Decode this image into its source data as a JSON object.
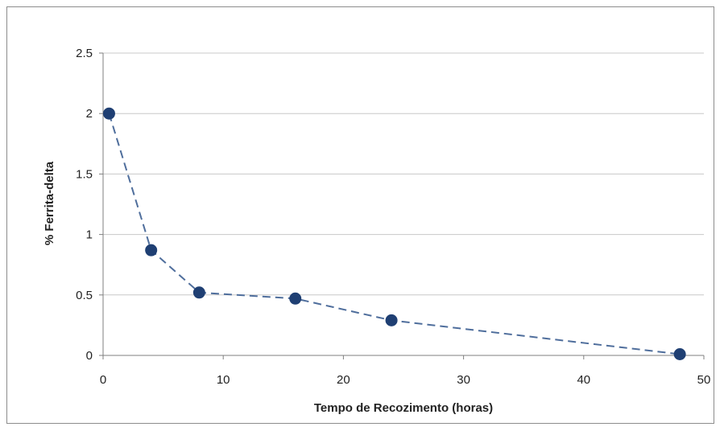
{
  "chart_data": {
    "type": "line",
    "title": "",
    "xlabel": "Tempo de Recozimento (horas)",
    "ylabel": "% Ferrita-delta",
    "xlim": [
      0,
      50
    ],
    "ylim": [
      0,
      2.5
    ],
    "x_ticks": [
      0,
      10,
      20,
      30,
      40,
      50
    ],
    "y_ticks": [
      0,
      0.5,
      1,
      1.5,
      2,
      2.5
    ],
    "x_tick_labels": [
      "0",
      "10",
      "20",
      "30",
      "40",
      "50"
    ],
    "y_tick_labels": [
      "0",
      "0.5",
      "1",
      "1.5",
      "2",
      "2.5"
    ],
    "grid": "horizontal",
    "legend": "none",
    "line_style": "dashed",
    "marker": "circle",
    "colors": {
      "series": "#1f3f73",
      "grid": "#c8c8c8",
      "axis": "#7f7f7f",
      "frame": "#8c8c8c"
    },
    "series": [
      {
        "x": [
          0.5,
          4,
          8,
          16,
          24,
          48
        ],
        "y": [
          2.0,
          0.87,
          0.52,
          0.47,
          0.29,
          0.01
        ]
      }
    ]
  }
}
